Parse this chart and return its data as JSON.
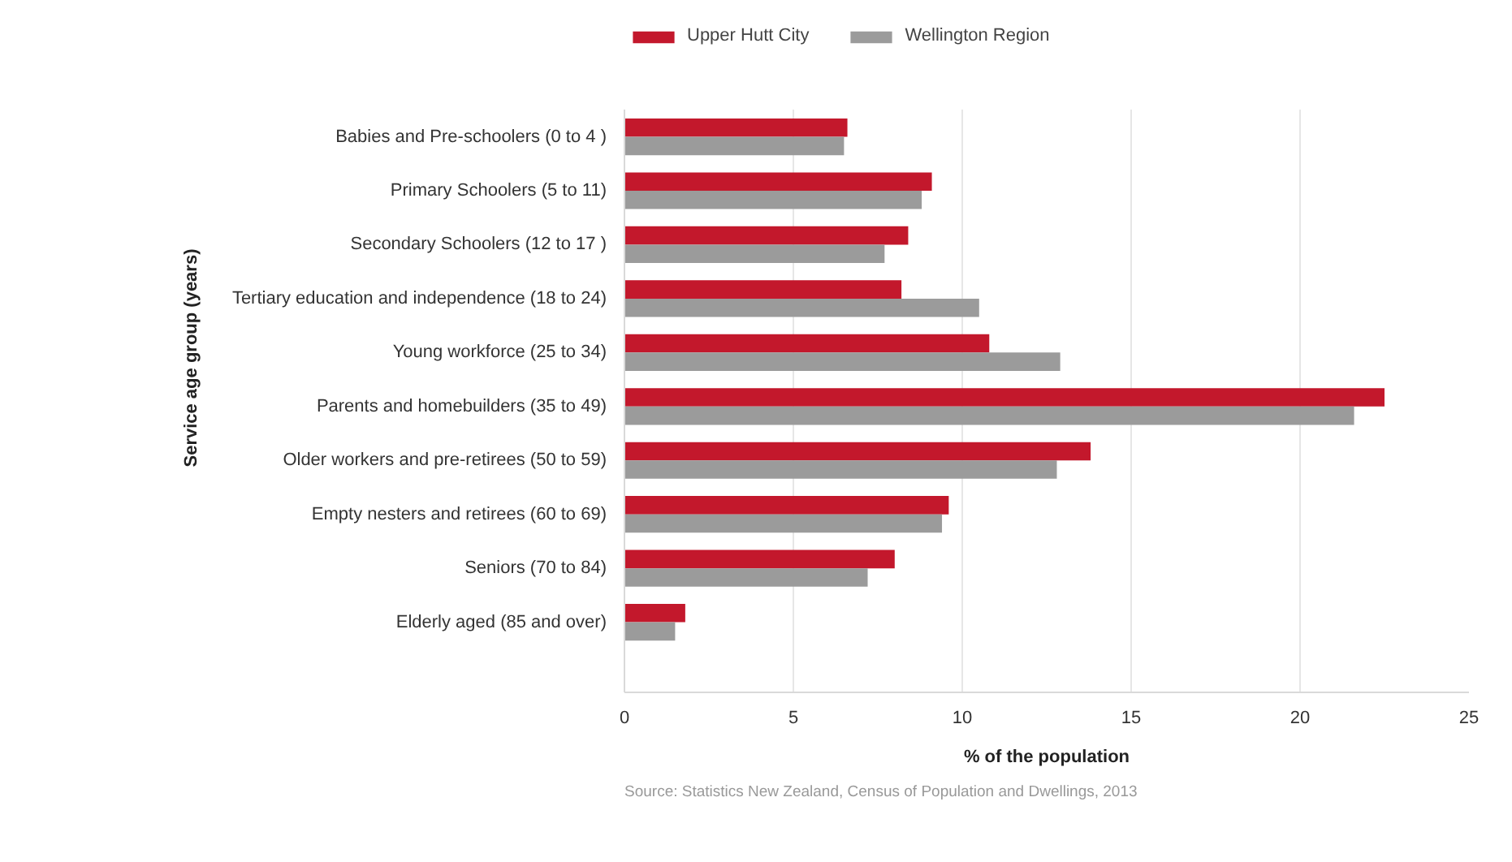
{
  "chart_data": {
    "type": "bar",
    "orientation": "horizontal",
    "categories": [
      "Babies and Pre-schoolers (0 to 4 )",
      "Primary Schoolers (5 to 11)",
      "Secondary Schoolers (12 to 17 )",
      "Tertiary education and independence (18 to 24)",
      "Young workforce (25 to 34)",
      "Parents and homebuilders (35 to 49)",
      "Older workers and pre-retirees (50 to 59)",
      "Empty nesters and retirees (60 to 69)",
      "Seniors (70 to 84)",
      "Elderly aged (85 and over)"
    ],
    "series": [
      {
        "name": "Upper Hutt City",
        "color": "#c3182c",
        "values": [
          6.6,
          9.1,
          8.4,
          8.2,
          10.8,
          22.5,
          13.8,
          9.6,
          8.0,
          1.8
        ]
      },
      {
        "name": "Wellington Region",
        "color": "#9b9b9b",
        "values": [
          6.5,
          8.8,
          7.7,
          10.5,
          12.9,
          21.6,
          12.8,
          9.4,
          7.2,
          1.5
        ]
      }
    ],
    "xlim": [
      0,
      25
    ],
    "xticks": [
      0,
      5,
      10,
      15,
      20,
      25
    ],
    "xlabel": "% of the population",
    "ylabel": "Service age group (years)",
    "grid": "x",
    "legend": "top left",
    "annotations": [
      "Source: Statistics New Zealand, Census of Population and Dwellings, 2013"
    ]
  }
}
